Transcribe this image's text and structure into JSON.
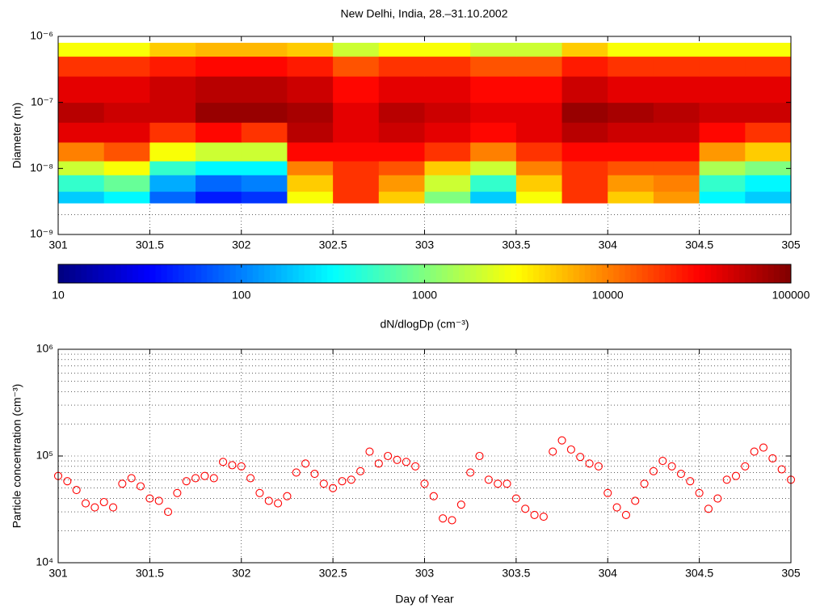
{
  "chart_data": [
    {
      "type": "heatmap",
      "title": "New Delhi, India, 28.–31.10.2002",
      "ylabel": "Diameter (m)",
      "xlim": [
        301,
        305
      ],
      "xticks": [
        301,
        301.5,
        302,
        302.5,
        303,
        303.5,
        304,
        304.5,
        305
      ],
      "ylim": [
        1e-09,
        1e-06
      ],
      "ylog": true,
      "yticks": [
        {
          "value": 1e-09,
          "label": "10⁻⁹"
        },
        {
          "value": 1e-08,
          "label": "10⁻⁸"
        },
        {
          "value": 1e-07,
          "label": "10⁻⁷"
        },
        {
          "value": 1e-06,
          "label": "10⁻⁶"
        }
      ],
      "yminorticks": [
        2e-09,
        3e-09,
        4e-09,
        5e-09,
        6e-09,
        7e-09,
        8e-09,
        9e-09
      ],
      "grid": true,
      "xbins": [
        301,
        301.25,
        301.5,
        301.75,
        302,
        302.25,
        302.5,
        302.75,
        303,
        303.25,
        303.5,
        303.75,
        304,
        304.25,
        304.5,
        304.75,
        305
      ],
      "ybins": [
        3e-09,
        4.5e-09,
        8e-09,
        1.3e-08,
        2.5e-08,
        5e-08,
        1e-07,
        2.5e-07,
        5e-07,
        8e-07
      ],
      "values": [
        [
          200,
          300,
          80,
          40,
          50,
          3000,
          20000,
          5000,
          1000,
          200,
          3000,
          20000,
          5000,
          8000,
          300,
          200
        ],
        [
          500,
          800,
          150,
          80,
          100,
          5000,
          20000,
          8000,
          2000,
          500,
          5000,
          20000,
          8000,
          10000,
          500,
          300
        ],
        [
          2000,
          3000,
          500,
          300,
          300,
          10000,
          20000,
          15000,
          5000,
          2000,
          10000,
          20000,
          15000,
          15000,
          1500,
          1000
        ],
        [
          10000,
          15000,
          3000,
          2000,
          2000,
          30000,
          30000,
          30000,
          20000,
          10000,
          20000,
          30000,
          30000,
          30000,
          8000,
          5000
        ],
        [
          40000,
          40000,
          20000,
          30000,
          20000,
          60000,
          40000,
          50000,
          40000,
          30000,
          40000,
          60000,
          50000,
          50000,
          30000,
          20000
        ],
        [
          60000,
          50000,
          50000,
          80000,
          80000,
          70000,
          40000,
          60000,
          50000,
          40000,
          40000,
          80000,
          70000,
          60000,
          50000,
          50000
        ],
        [
          40000,
          40000,
          50000,
          60000,
          60000,
          50000,
          30000,
          40000,
          40000,
          30000,
          30000,
          50000,
          40000,
          40000,
          40000,
          40000
        ],
        [
          20000,
          20000,
          25000,
          30000,
          30000,
          25000,
          15000,
          20000,
          20000,
          15000,
          15000,
          25000,
          20000,
          20000,
          20000,
          20000
        ],
        [
          3000,
          3000,
          5000,
          6000,
          6000,
          5000,
          2000,
          3000,
          3000,
          2000,
          2000,
          5000,
          3000,
          3000,
          3000,
          3000
        ]
      ],
      "colormap": "jet",
      "clim": [
        10,
        100000
      ],
      "colorbar_ticks": [
        10,
        100,
        1000,
        10000,
        100000
      ],
      "colorbar_label": "dN/dlogDp (cm⁻³)"
    },
    {
      "type": "scatter",
      "xlabel": "Day of Year",
      "ylabel": "Particle concentration (cm⁻³)",
      "xlim": [
        301,
        305
      ],
      "xticks": [
        301,
        301.5,
        302,
        302.5,
        303,
        303.5,
        304,
        304.5,
        305
      ],
      "ylim": [
        10000,
        1000000
      ],
      "ylog": true,
      "yticks": [
        {
          "value": 10000,
          "label": "10⁴"
        },
        {
          "value": 100000,
          "label": "10⁵"
        },
        {
          "value": 1000000,
          "label": "10⁶"
        }
      ],
      "yminorticks": [
        20000,
        30000,
        40000,
        50000,
        60000,
        70000,
        80000,
        90000,
        200000,
        300000,
        400000,
        500000,
        600000,
        700000,
        800000,
        900000
      ],
      "grid": true,
      "color": "#ff0000",
      "x": [
        301,
        301.05,
        301.1,
        301.15,
        301.2,
        301.25,
        301.3,
        301.35,
        301.4,
        301.45,
        301.5,
        301.55,
        301.6,
        301.65,
        301.7,
        301.75,
        301.8,
        301.85,
        301.9,
        301.95,
        302,
        302.05,
        302.1,
        302.15,
        302.2,
        302.25,
        302.3,
        302.35,
        302.4,
        302.45,
        302.5,
        302.55,
        302.6,
        302.65,
        302.7,
        302.75,
        302.8,
        302.85,
        302.9,
        302.95,
        303,
        303.05,
        303.1,
        303.15,
        303.2,
        303.25,
        303.3,
        303.35,
        303.4,
        303.45,
        303.5,
        303.55,
        303.6,
        303.65,
        303.7,
        303.75,
        303.8,
        303.85,
        303.9,
        303.95,
        304,
        304.05,
        304.1,
        304.15,
        304.2,
        304.25,
        304.3,
        304.35,
        304.4,
        304.45,
        304.5,
        304.55,
        304.6,
        304.65,
        304.7,
        304.75,
        304.8,
        304.85,
        304.9,
        304.95,
        305
      ],
      "values": [
        65000,
        58000,
        48000,
        36000,
        33000,
        37000,
        33000,
        55000,
        62000,
        52000,
        40000,
        38000,
        30000,
        45000,
        58000,
        62000,
        65000,
        62000,
        88000,
        82000,
        80000,
        62000,
        45000,
        38000,
        36000,
        42000,
        70000,
        85000,
        68000,
        55000,
        50000,
        58000,
        60000,
        72000,
        110000,
        85000,
        100000,
        92000,
        88000,
        80000,
        55000,
        42000,
        26000,
        25000,
        35000,
        70000,
        100000,
        60000,
        55000,
        55000,
        40000,
        32000,
        28000,
        27000,
        110000,
        140000,
        115000,
        98000,
        85000,
        80000,
        45000,
        33000,
        28000,
        38000,
        55000,
        72000,
        90000,
        80000,
        68000,
        58000,
        45000,
        32000,
        40000,
        60000,
        65000,
        80000,
        110000,
        120000,
        95000,
        75000,
        60000
      ]
    }
  ]
}
